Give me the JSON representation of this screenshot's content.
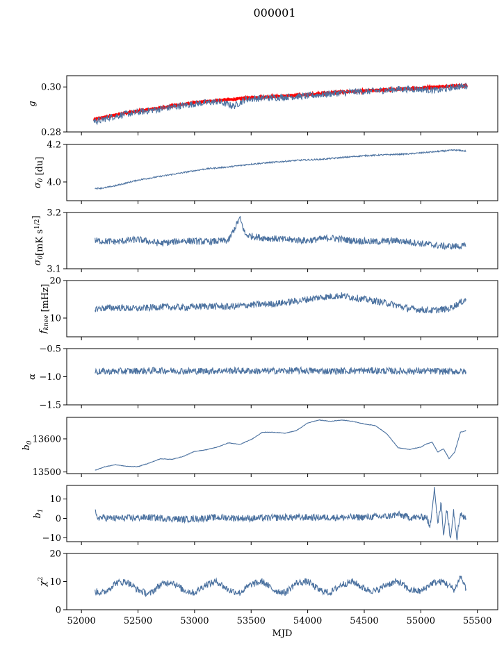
{
  "figure": {
    "title": "000001"
  },
  "chart_data": [
    {
      "type": "line",
      "ylabel_parts": [
        {
          "t": "g",
          "s": "main"
        }
      ],
      "ylim": [
        0.28,
        0.305
      ],
      "yticks": [
        0.28,
        0.3
      ],
      "ytick_labels": [
        "0.28",
        "0.30"
      ],
      "xlim": [
        51870,
        55680
      ],
      "x": [
        52108,
        52150,
        52250,
        52400,
        52600,
        52800,
        53000,
        53200,
        53350,
        53450,
        53600,
        53800,
        54000,
        54200,
        54400,
        54600,
        54800,
        55000,
        55150,
        55300,
        55410
      ],
      "series": [
        {
          "role": "model",
          "color": "#ff0000",
          "values": [
            0.2855,
            0.286,
            0.287,
            0.2885,
            0.29,
            0.2915,
            0.293,
            0.294,
            0.2945,
            0.295,
            0.2955,
            0.296,
            0.2965,
            0.2975,
            0.298,
            0.2985,
            0.299,
            0.2995,
            0.3,
            0.3005,
            0.3005
          ]
        },
        {
          "role": "measured",
          "color": "#4c72a0",
          "values": [
            0.285,
            0.2848,
            0.2865,
            0.288,
            0.2895,
            0.291,
            0.2925,
            0.2935,
            0.2915,
            0.2945,
            0.295,
            0.2955,
            0.296,
            0.297,
            0.2978,
            0.2982,
            0.299,
            0.299,
            0.2985,
            0.3,
            0.3005
          ]
        }
      ]
    },
    {
      "type": "line",
      "ylabel_parts": [
        {
          "t": "σ",
          "s": "main"
        },
        {
          "t": "0",
          "s": "sub"
        },
        {
          "t": " [du]",
          "s": "unit"
        }
      ],
      "ylim": [
        3.9,
        4.2
      ],
      "yticks": [
        4.0,
        4.2
      ],
      "ytick_labels": [
        "4.0",
        "4.2"
      ],
      "xlim": [
        51870,
        55680
      ],
      "x": [
        52120,
        52200,
        52300,
        52500,
        52700,
        52900,
        53100,
        53300,
        53500,
        53700,
        53900,
        54100,
        54300,
        54500,
        54700,
        54900,
        55100,
        55300,
        55400
      ],
      "series": [
        {
          "role": "measured",
          "color": "#4c72a0",
          "values": [
            3.965,
            3.968,
            3.98,
            4.01,
            4.03,
            4.05,
            4.07,
            4.08,
            4.095,
            4.105,
            4.115,
            4.12,
            4.13,
            4.14,
            4.145,
            4.15,
            4.16,
            4.17,
            4.165
          ]
        }
      ]
    },
    {
      "type": "line",
      "ylabel_parts": [
        {
          "t": "σ",
          "s": "main"
        },
        {
          "t": "0",
          "s": "sub"
        },
        {
          "t": "[mK s",
          "s": "unit"
        },
        {
          "t": "1/2",
          "s": "sup"
        },
        {
          "t": "]",
          "s": "unit"
        }
      ],
      "ylim": [
        3.1,
        3.2
      ],
      "yticks": [
        3.1,
        3.2
      ],
      "ytick_labels": [
        "3.1",
        "3.2"
      ],
      "xlim": [
        51870,
        55680
      ],
      "x": [
        52120,
        52300,
        52500,
        52700,
        52900,
        53100,
        53300,
        53400,
        53450,
        53600,
        53800,
        54000,
        54200,
        54400,
        54600,
        54800,
        55000,
        55200,
        55400
      ],
      "series": [
        {
          "role": "measured",
          "color": "#4c72a0",
          "values": [
            3.15,
            3.148,
            3.152,
            3.145,
            3.15,
            3.148,
            3.15,
            3.19,
            3.16,
            3.155,
            3.152,
            3.15,
            3.155,
            3.15,
            3.148,
            3.15,
            3.145,
            3.14,
            3.14
          ]
        }
      ]
    },
    {
      "type": "line",
      "ylabel_parts": [
        {
          "t": "f",
          "s": "main"
        },
        {
          "t": "knee",
          "s": "sub"
        },
        {
          "t": " [mHz]",
          "s": "unit"
        }
      ],
      "ylim": [
        5,
        20
      ],
      "yticks": [
        10,
        20
      ],
      "ytick_labels": [
        "10",
        "20"
      ],
      "xlim": [
        51870,
        55680
      ],
      "x": [
        52120,
        52300,
        52500,
        52700,
        52900,
        53100,
        53300,
        53500,
        53700,
        53900,
        54100,
        54300,
        54500,
        54700,
        54900,
        55100,
        55250,
        55400
      ],
      "series": [
        {
          "role": "measured",
          "color": "#4c72a0",
          "values": [
            12.5,
            12.8,
            12.5,
            13.0,
            12.8,
            13.2,
            13.0,
            13.5,
            13.8,
            14.5,
            15.5,
            16.0,
            15.0,
            14.0,
            12.5,
            12.0,
            12.5,
            15.0
          ]
        }
      ]
    },
    {
      "type": "line",
      "ylabel_parts": [
        {
          "t": "α",
          "s": "main"
        }
      ],
      "ylim": [
        -1.5,
        -0.5
      ],
      "yticks": [
        -1.5,
        -1.0,
        -0.5
      ],
      "ytick_labels": [
        "−1.5",
        "−1.0",
        "−0.5"
      ],
      "xlim": [
        51870,
        55680
      ],
      "x": [
        52120,
        52400,
        52700,
        53000,
        53300,
        53600,
        53900,
        54200,
        54500,
        54800,
        55100,
        55400
      ],
      "series": [
        {
          "role": "measured",
          "color": "#4c72a0",
          "values": [
            -0.91,
            -0.9,
            -0.89,
            -0.9,
            -0.89,
            -0.9,
            -0.89,
            -0.9,
            -0.89,
            -0.9,
            -0.9,
            -0.91
          ]
        }
      ]
    },
    {
      "type": "line",
      "ylabel_parts": [
        {
          "t": "b",
          "s": "main"
        },
        {
          "t": "0",
          "s": "sub"
        }
      ],
      "ylim": [
        13495,
        13665
      ],
      "yticks": [
        13500,
        13600
      ],
      "ytick_labels": [
        "13500",
        "13600"
      ],
      "xlim": [
        51870,
        55680
      ],
      "x": [
        52120,
        52200,
        52300,
        52400,
        52500,
        52600,
        52700,
        52800,
        52900,
        53000,
        53100,
        53200,
        53300,
        53400,
        53500,
        53600,
        53700,
        53800,
        53900,
        54000,
        54100,
        54200,
        54300,
        54400,
        54500,
        54600,
        54700,
        54800,
        54900,
        55000,
        55050,
        55100,
        55150,
        55200,
        55250,
        55300,
        55350,
        55400
      ],
      "series": [
        {
          "role": "measured",
          "color": "#4c72a0",
          "values": [
            13505,
            13515,
            13522,
            13517,
            13516,
            13527,
            13540,
            13538,
            13547,
            13562,
            13567,
            13575,
            13588,
            13583,
            13598,
            13620,
            13620,
            13617,
            13625,
            13648,
            13657,
            13653,
            13657,
            13653,
            13645,
            13640,
            13615,
            13573,
            13568,
            13575,
            13585,
            13590,
            13560,
            13570,
            13540,
            13560,
            13620,
            13625
          ]
        }
      ]
    },
    {
      "type": "line",
      "ylabel_parts": [
        {
          "t": "b",
          "s": "main"
        },
        {
          "t": "1",
          "s": "sub"
        }
      ],
      "ylim": [
        -12,
        17
      ],
      "yticks": [
        -10,
        0,
        10
      ],
      "ytick_labels": [
        "−10",
        "0",
        "10"
      ],
      "xlim": [
        51870,
        55680
      ],
      "x": [
        52120,
        52135,
        52300,
        52600,
        52900,
        53200,
        53500,
        53800,
        54100,
        54400,
        54700,
        54800,
        54900,
        55000,
        55050,
        55080,
        55120,
        55150,
        55180,
        55200,
        55230,
        55260,
        55290,
        55320,
        55350,
        55380,
        55400
      ],
      "series": [
        {
          "role": "measured",
          "color": "#4c72a0",
          "values": [
            3.5,
            0.5,
            0.0,
            0.5,
            -0.5,
            0.5,
            0.0,
            0.5,
            0.5,
            0.5,
            1.0,
            2.0,
            0.5,
            0.5,
            1.0,
            -5.0,
            16.0,
            -3.0,
            8.0,
            -8.0,
            5.0,
            -10.0,
            4.0,
            -10.0,
            3.0,
            0.5,
            0.0
          ]
        }
      ]
    },
    {
      "type": "line",
      "ylabel_parts": [
        {
          "t": "χ",
          "s": "main"
        },
        {
          "t": "2",
          "s": "sup"
        }
      ],
      "ylim": [
        0,
        20
      ],
      "yticks": [
        0,
        10,
        20
      ],
      "ytick_labels": [
        "0",
        "10",
        "20"
      ],
      "xlim": [
        51870,
        55680
      ],
      "xticks": [
        52000,
        52500,
        53000,
        53500,
        54000,
        54500,
        55000,
        55500
      ],
      "xtick_labels": [
        "52000",
        "52500",
        "53000",
        "53500",
        "54000",
        "54500",
        "55000",
        "55500"
      ],
      "xlabel": "MJD",
      "x": [
        52120,
        52200,
        52300,
        52400,
        52500,
        52600,
        52700,
        52800,
        52900,
        53000,
        53100,
        53200,
        53300,
        53400,
        53500,
        53600,
        53700,
        53800,
        53900,
        54000,
        54100,
        54200,
        54300,
        54400,
        54500,
        54600,
        54700,
        54800,
        54900,
        55000,
        55100,
        55200,
        55300,
        55350,
        55400
      ],
      "series": [
        {
          "role": "measured",
          "color": "#4c72a0",
          "values": [
            6.5,
            6.0,
            9.5,
            10.0,
            7.0,
            5.5,
            9.0,
            10.0,
            7.0,
            6.0,
            9.0,
            10.0,
            7.0,
            6.0,
            9.0,
            10.0,
            7.0,
            6.0,
            9.5,
            10.0,
            7.0,
            6.0,
            9.0,
            10.0,
            7.5,
            6.5,
            9.0,
            10.0,
            7.0,
            6.5,
            9.5,
            10.0,
            7.0,
            12.0,
            7.5
          ]
        }
      ]
    }
  ]
}
